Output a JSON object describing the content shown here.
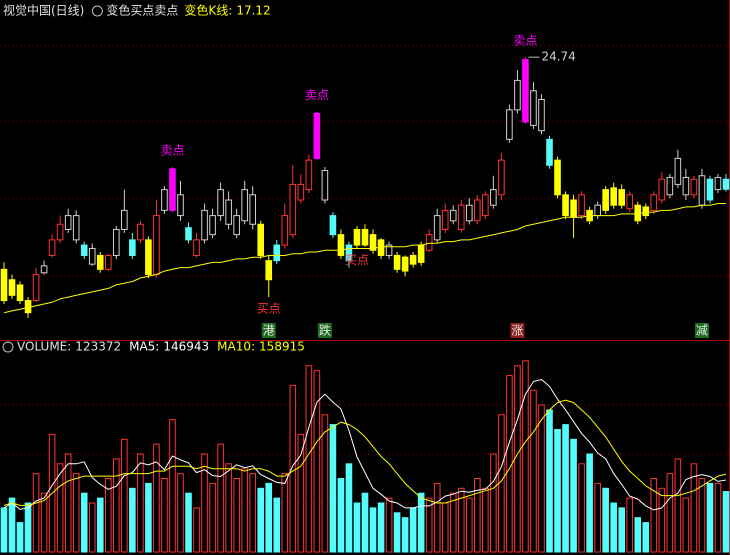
{
  "chart_data": [
    {
      "type": "candlestick",
      "title": "视觉中国(日线)",
      "subtitle": "变色买点卖点",
      "value_label": "变色K线:",
      "open": [
        12.5,
        11.9,
        11.6,
        10.7,
        10.7,
        12.3,
        13.3,
        14.2,
        14.8,
        14.2,
        13.9,
        12.8,
        13.3,
        12.5,
        13.3,
        14.8,
        14.2,
        14.2,
        14.2,
        12.2,
        15.9,
        15.9,
        15.6,
        14.9,
        13.3,
        14.2,
        14.5,
        15.6,
        15.1,
        14.5,
        15.3,
        15.1,
        15.1,
        13.0,
        13.9,
        13.9,
        14.5,
        16.5,
        17.1,
        18.9,
        16.5,
        15.6,
        14.5,
        13.9,
        14.8,
        14.8,
        14.5,
        14.2,
        13.3,
        13.3,
        13.2,
        13.3,
        13.9,
        13.6,
        14.2,
        14.8,
        15.3,
        14.8,
        15.3,
        15.3,
        15.6,
        16.2,
        16.8,
        20.0,
        21.7,
        21.0,
        20.8,
        20.5,
        20.0,
        18.8,
        16.8,
        16.5,
        15.6,
        15.9,
        15.6,
        17.1,
        17.2,
        17.1,
        16.0,
        16.2,
        16.1,
        15.9,
        16.5,
        16.8,
        17.4,
        16.8,
        16.8,
        16.2,
        17.7,
        17.1,
        17.7
      ],
      "high": [
        12.9,
        12.2,
        11.8,
        10.9,
        12.6,
        13.0,
        14.5,
        15.6,
        16.0,
        15.9,
        14.1,
        14.0,
        13.5,
        13.4,
        15.0,
        17.1,
        14.6,
        15.3,
        14.4,
        16.5,
        17.3,
        18.4,
        17.6,
        15.2,
        14.6,
        16.3,
        16.0,
        17.5,
        17.0,
        16.0,
        17.6,
        17.3,
        15.3,
        13.3,
        14.2,
        16.3,
        18.5,
        18.0,
        19.1,
        21.6,
        18.4,
        15.8,
        14.8,
        14.1,
        15.0,
        15.1,
        14.8,
        14.3,
        14.1,
        13.5,
        13.3,
        13.5,
        14.1,
        14.8,
        16.0,
        16.3,
        16.2,
        16.5,
        16.6,
        16.8,
        17.0,
        17.9,
        19.2,
        22.0,
        24.0,
        24.74,
        23.3,
        22.6,
        20.2,
        19.0,
        17.0,
        16.8,
        17.0,
        16.1,
        16.4,
        17.3,
        17.5,
        17.4,
        17.0,
        16.4,
        16.3,
        17.0,
        18.1,
        18.0,
        19.4,
        18.3,
        17.9,
        18.3,
        17.9,
        18.0,
        18.0
      ],
      "low": [
        10.5,
        10.8,
        10.5,
        9.7,
        10.6,
        12.2,
        13.2,
        14.0,
        14.6,
        14.0,
        13.1,
        12.7,
        12.3,
        12.4,
        13.1,
        14.6,
        13.1,
        14.0,
        12.0,
        12.0,
        15.7,
        15.8,
        15.3,
        14.0,
        13.2,
        14.0,
        14.3,
        15.3,
        14.8,
        14.3,
        15.1,
        14.8,
        13.1,
        10.9,
        12.8,
        13.7,
        14.3,
        16.3,
        16.9,
        18.8,
        16.3,
        14.3,
        13.1,
        12.6,
        13.7,
        13.8,
        13.4,
        13.1,
        13.1,
        12.3,
        12.1,
        12.6,
        12.7,
        13.5,
        14.0,
        14.6,
        15.1,
        14.6,
        15.1,
        15.1,
        15.4,
        16.0,
        16.5,
        19.8,
        21.5,
        20.9,
        20.6,
        20.3,
        18.3,
        16.6,
        15.4,
        14.3,
        15.4,
        15.1,
        15.4,
        15.7,
        16.0,
        16.0,
        15.8,
        15.1,
        15.4,
        15.7,
        16.3,
        16.6,
        17.2,
        16.5,
        16.6,
        16.0,
        16.3,
        16.9,
        17.0
      ],
      "close": [
        10.7,
        11.0,
        10.7,
        10.0,
        12.2,
        12.7,
        14.2,
        15.1,
        15.6,
        15.6,
        13.3,
        13.7,
        12.5,
        13.3,
        14.8,
        15.9,
        13.3,
        15.1,
        12.2,
        15.6,
        17.1,
        18.3,
        16.8,
        14.2,
        14.2,
        15.9,
        15.6,
        17.1,
        16.5,
        15.6,
        17.1,
        16.8,
        13.3,
        11.9,
        13.0,
        15.6,
        17.4,
        17.4,
        18.8,
        21.5,
        18.2,
        14.5,
        13.3,
        13.0,
        13.9,
        13.9,
        13.6,
        13.3,
        13.9,
        12.5,
        12.4,
        12.8,
        12.9,
        14.5,
        15.6,
        15.9,
        15.9,
        16.2,
        16.2,
        16.5,
        16.8,
        17.1,
        18.8,
        21.7,
        23.4,
        24.6,
        22.8,
        22.3,
        18.5,
        16.8,
        15.6,
        15.5,
        16.8,
        15.3,
        16.2,
        15.9,
        16.2,
        16.2,
        16.8,
        15.3,
        15.6,
        16.8,
        17.7,
        17.8,
        18.9,
        17.8,
        17.7,
        17.9,
        16.5,
        17.8,
        17.12
      ],
      "colors": [
        "#ffff00",
        "#ffff00",
        "#ffff00",
        "#ffff00",
        "#ff3232",
        "#d0d0d0",
        "#ff3232",
        "#ff3232",
        "#d0d0d0",
        "#d0d0d0",
        "#54fcfc",
        "#d0d0d0",
        "#ffff00",
        "#ff3232",
        "#d0d0d0",
        "#d0d0d0",
        "#54fcfc",
        "#ff3232",
        "#ffff00",
        "#ff3232",
        "#d0d0d0",
        "#ff00ff",
        "#d0d0d0",
        "#54fcfc",
        "#ff3232",
        "#d0d0d0",
        "#d0d0d0",
        "#d0d0d0",
        "#d0d0d0",
        "#d0d0d0",
        "#d0d0d0",
        "#d0d0d0",
        "#ffff00",
        "#ffff00",
        "#54fcfc",
        "#ff3232",
        "#ff3232",
        "#ff3232",
        "#ff3232",
        "#ff00ff",
        "#d0d0d0",
        "#54fcfc",
        "#ffff00",
        "#54fcfc",
        "#ffff00",
        "#ffff00",
        "#ffff00",
        "#ffff00",
        "#d0d0d0",
        "#ffff00",
        "#ffff00",
        "#ffff00",
        "#ffff00",
        "#ff3232",
        "#d0d0d0",
        "#ff3232",
        "#d0d0d0",
        "#ff3232",
        "#d0d0d0",
        "#ff3232",
        "#ff3232",
        "#d0d0d0",
        "#ff3232",
        "#d0d0d0",
        "#d0d0d0",
        "#ff00ff",
        "#d0d0d0",
        "#d0d0d0",
        "#54fcfc",
        "#ffff00",
        "#ffff00",
        "#ffff00",
        "#ff3232",
        "#ffff00",
        "#d0d0d0",
        "#ffff00",
        "#ffff00",
        "#ffff00",
        "#ff3232",
        "#ffff00",
        "#ffff00",
        "#ff3232",
        "#ff3232",
        "#d0d0d0",
        "#d0d0d0",
        "#d0d0d0",
        "#ff3232",
        "#d0d0d0",
        "#54fcfc",
        "#d0d0d0",
        "#54fcfc"
      ],
      "hollow_colors": [
        "#ff3232",
        "#d0d0d0"
      ],
      "ma": {
        "color": "#ffff00",
        "values": [
          10.0,
          10.1,
          10.2,
          10.3,
          10.4,
          10.5,
          10.6,
          10.8,
          10.9,
          11.0,
          11.1,
          11.2,
          11.3,
          11.4,
          11.6,
          11.7,
          11.8,
          12.0,
          12.1,
          12.2,
          12.4,
          12.5,
          12.6,
          12.6,
          12.7,
          12.8,
          12.9,
          12.9,
          13.0,
          13.1,
          13.1,
          13.2,
          13.2,
          13.3,
          13.3,
          13.3,
          13.4,
          13.4,
          13.5,
          13.5,
          13.6,
          13.6,
          13.6,
          13.7,
          13.7,
          13.7,
          13.7,
          13.8,
          13.8,
          13.8,
          13.8,
          13.9,
          13.9,
          14.0,
          14.0,
          14.1,
          14.1,
          14.2,
          14.2,
          14.3,
          14.4,
          14.5,
          14.6,
          14.7,
          14.8,
          15.0,
          15.1,
          15.2,
          15.3,
          15.4,
          15.5,
          15.5,
          15.5,
          15.6,
          15.6,
          15.6,
          15.6,
          15.7,
          15.7,
          15.7,
          15.8,
          15.8,
          15.9,
          15.9,
          16.0,
          16.1,
          16.1,
          16.2,
          16.2,
          16.3,
          16.3
        ]
      },
      "ylim": [
        9,
        27
      ],
      "grid_values": [
        12.1,
        16.6,
        21.0,
        25.4
      ],
      "signals": [
        null,
        null,
        null,
        null,
        null,
        null,
        null,
        null,
        null,
        null,
        null,
        null,
        null,
        null,
        null,
        null,
        null,
        null,
        null,
        null,
        null,
        {
          "text": "卖点",
          "color": "#ff00ff"
        },
        null,
        null,
        null,
        null,
        null,
        null,
        null,
        null,
        null,
        null,
        null,
        {
          "text": "买点",
          "color": "#ff3232"
        },
        null,
        null,
        null,
        null,
        null,
        {
          "text": "卖点",
          "color": "#ff00ff"
        },
        null,
        null,
        null,
        null,
        {
          "text": "买点",
          "color": "#ff3232"
        },
        null,
        null,
        null,
        null,
        null,
        null,
        null,
        null,
        null,
        null,
        null,
        null,
        null,
        null,
        null,
        null,
        null,
        null,
        null,
        null,
        {
          "text": "卖点",
          "color": "#ff00ff"
        },
        null,
        null,
        null,
        null,
        null,
        null,
        null,
        null,
        null,
        null,
        null,
        null,
        null,
        null,
        null,
        null,
        null,
        null,
        null,
        null,
        null,
        null,
        null,
        null,
        null
      ],
      "events": [
        null,
        null,
        null,
        null,
        null,
        null,
        null,
        null,
        null,
        null,
        null,
        null,
        null,
        null,
        null,
        null,
        null,
        null,
        null,
        null,
        null,
        null,
        null,
        null,
        null,
        null,
        null,
        null,
        null,
        null,
        null,
        null,
        null,
        {
          "text": "港",
          "color": "#1d6b1d"
        },
        null,
        null,
        null,
        null,
        null,
        null,
        {
          "text": "跌",
          "color": "#1d6b1d"
        },
        null,
        null,
        null,
        null,
        null,
        null,
        null,
        null,
        null,
        null,
        null,
        null,
        null,
        null,
        null,
        null,
        null,
        null,
        null,
        null,
        null,
        null,
        null,
        {
          "text": "涨",
          "color": "#8b1c1c"
        },
        null,
        null,
        null,
        null,
        null,
        null,
        null,
        null,
        null,
        null,
        null,
        null,
        null,
        null,
        null,
        null,
        null,
        null,
        null,
        null,
        null,
        null,
        {
          "text": "减",
          "color": "#1d6b1d"
        },
        null,
        null,
        null
      ]
    },
    {
      "type": "volume",
      "title": "VOLUME:",
      "up_color": "#ff3232",
      "down_color": "#54fcfc",
      "values": [
        90000,
        110000,
        60000,
        100000,
        160000,
        120000,
        240000,
        180000,
        200000,
        160000,
        120000,
        100000,
        110000,
        150000,
        190000,
        230000,
        130000,
        200000,
        140000,
        220000,
        150000,
        270000,
        160000,
        120000,
        90000,
        200000,
        140000,
        220000,
        180000,
        150000,
        170000,
        160000,
        130000,
        140000,
        110000,
        160000,
        340000,
        240000,
        380000,
        370000,
        280000,
        260000,
        150000,
        180000,
        100000,
        120000,
        90000,
        100000,
        110000,
        80000,
        70000,
        90000,
        120000,
        110000,
        140000,
        100000,
        120000,
        130000,
        110000,
        150000,
        130000,
        200000,
        280000,
        360000,
        380000,
        390000,
        330000,
        300000,
        290000,
        250000,
        260000,
        230000,
        180000,
        200000,
        140000,
        130000,
        100000,
        90000,
        110000,
        70000,
        60000,
        150000,
        130000,
        160000,
        190000,
        110000,
        180000,
        150000,
        140000,
        140000,
        123372
      ],
      "series": [
        {
          "name": "MA5:",
          "color": "#ffffff",
          "values": [
            90000,
            100000,
            87000,
            90000,
            104000,
            110000,
            136000,
            160000,
            180000,
            180000,
            184000,
            152000,
            138000,
            128000,
            134000,
            156000,
            162000,
            182000,
            178000,
            184000,
            168000,
            196000,
            188000,
            182000,
            162000,
            168000,
            156000,
            154000,
            166000,
            178000,
            172000,
            176000,
            158000,
            150000,
            142000,
            140000,
            176000,
            198000,
            254000,
            306000,
            322000,
            306000,
            292000,
            248000,
            194000,
            162000,
            130000,
            118000,
            104000,
            100000,
            90000,
            90000,
            94000,
            94000,
            102000,
            114000,
            118000,
            124000,
            122000,
            126000,
            128000,
            144000,
            174000,
            224000,
            270000,
            322000,
            348000,
            352000,
            338000,
            312000,
            290000,
            266000,
            242000,
            224000,
            202000,
            190000,
            160000,
            138000,
            114000,
            108000,
            94000,
            86000,
            90000,
            110000,
            120000,
            148000,
            154000,
            158000,
            154000,
            144000,
            146943
          ]
        },
        {
          "name": "MA10:",
          "color": "#ffff00",
          "values": [
            95000,
            100000,
            95000,
            95000,
            100000,
            105000,
            120000,
            135000,
            145000,
            150000,
            155000,
            155000,
            155000,
            155000,
            155000,
            160000,
            160000,
            160000,
            160000,
            165000,
            165000,
            175000,
            175000,
            175000,
            170000,
            175000,
            170000,
            170000,
            170000,
            170000,
            165000,
            170000,
            170000,
            165000,
            155000,
            155000,
            165000,
            175000,
            200000,
            225000,
            245000,
            255000,
            265000,
            260000,
            250000,
            235000,
            215000,
            195000,
            180000,
            160000,
            140000,
            125000,
            110000,
            105000,
            100000,
            100000,
            105000,
            110000,
            115000,
            120000,
            125000,
            130000,
            145000,
            170000,
            200000,
            225000,
            245000,
            270000,
            290000,
            305000,
            310000,
            305000,
            290000,
            275000,
            255000,
            235000,
            210000,
            185000,
            165000,
            150000,
            135000,
            125000,
            115000,
            115000,
            115000,
            120000,
            125000,
            135000,
            145000,
            155000,
            158915
          ]
        }
      ],
      "ylim": [
        0,
        400000
      ],
      "grid_values": [
        100000,
        200000,
        300000
      ]
    }
  ]
}
